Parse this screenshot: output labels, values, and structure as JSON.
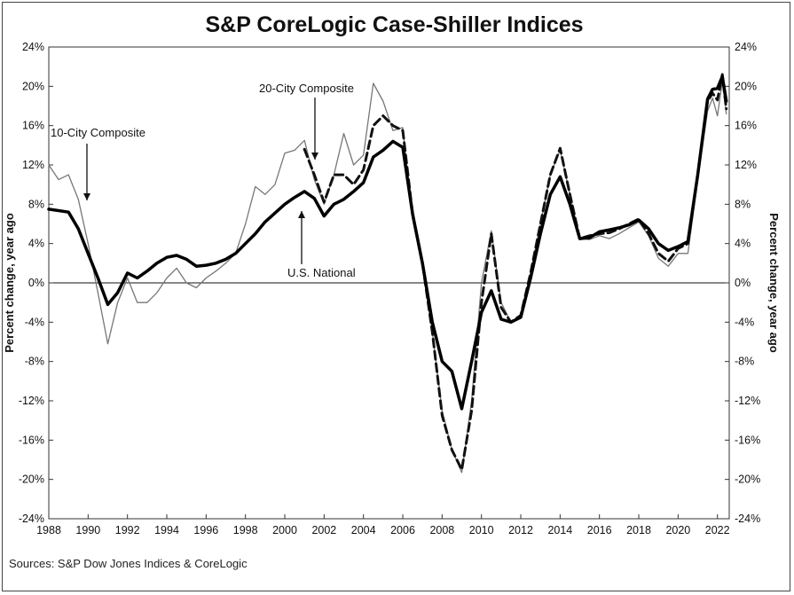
{
  "title": "S&P CoreLogic Case-Shiller Indices",
  "source": "Sources: S&P Dow Jones Indices & CoreLogic",
  "chart_data": {
    "type": "line",
    "ylabel_left": "Percent change, year ago",
    "ylabel_right": "Percent change, year ago",
    "xlim": [
      1988,
      2022.6
    ],
    "ylim": [
      -24,
      24
    ],
    "x_ticks": [
      "1988",
      "1990",
      "1992",
      "1994",
      "1996",
      "1998",
      "2000",
      "2002",
      "2004",
      "2006",
      "2008",
      "2010",
      "2012",
      "2014",
      "2016",
      "2018",
      "2020",
      "2022"
    ],
    "y_ticks": [
      "24%",
      "20%",
      "16%",
      "12%",
      "8%",
      "4%",
      "0%",
      "-4%",
      "-8%",
      "-12%",
      "-16%",
      "-20%",
      "-24%"
    ],
    "grid": false,
    "annotations": [
      {
        "text": "10-City Composite",
        "series": "10-City Composite"
      },
      {
        "text": "20-City Composite",
        "series": "20-City Composite"
      },
      {
        "text": "U.S. National",
        "series": "U.S. National"
      }
    ],
    "series": [
      {
        "name": "U.S. National",
        "style": "solid-thick",
        "points": [
          [
            1988,
            7.5
          ],
          [
            1989,
            7.2
          ],
          [
            1989.5,
            5.5
          ],
          [
            1990,
            3
          ],
          [
            1990.5,
            0.5
          ],
          [
            1991,
            -2.2
          ],
          [
            1991.5,
            -1
          ],
          [
            1992,
            1
          ],
          [
            1992.5,
            0.5
          ],
          [
            1993,
            1.2
          ],
          [
            1993.5,
            2
          ],
          [
            1994,
            2.6
          ],
          [
            1994.5,
            2.8
          ],
          [
            1995,
            2.4
          ],
          [
            1995.5,
            1.7
          ],
          [
            1996,
            1.8
          ],
          [
            1996.5,
            2
          ],
          [
            1997,
            2.4
          ],
          [
            1997.5,
            3
          ],
          [
            1998,
            4
          ],
          [
            1998.5,
            5
          ],
          [
            1999,
            6.2
          ],
          [
            1999.5,
            7.1
          ],
          [
            2000,
            8
          ],
          [
            2000.5,
            8.7
          ],
          [
            2001,
            9.3
          ],
          [
            2001.5,
            8.6
          ],
          [
            2002,
            6.8
          ],
          [
            2002.5,
            8
          ],
          [
            2003,
            8.5
          ],
          [
            2003.5,
            9.3
          ],
          [
            2004,
            10.2
          ],
          [
            2004.5,
            12.8
          ],
          [
            2005,
            13.5
          ],
          [
            2005.5,
            14.4
          ],
          [
            2006,
            13.8
          ],
          [
            2006.5,
            7
          ],
          [
            2007,
            2
          ],
          [
            2007.5,
            -4
          ],
          [
            2008,
            -8
          ],
          [
            2008.5,
            -9
          ],
          [
            2009,
            -12.8
          ],
          [
            2009.5,
            -8
          ],
          [
            2010,
            -3
          ],
          [
            2010.5,
            -0.8
          ],
          [
            2011,
            -3.7
          ],
          [
            2011.5,
            -4
          ],
          [
            2012,
            -3.5
          ],
          [
            2012.5,
            0.5
          ],
          [
            2013,
            5
          ],
          [
            2013.5,
            9
          ],
          [
            2014,
            10.8
          ],
          [
            2014.5,
            8
          ],
          [
            2015,
            4.5
          ],
          [
            2015.5,
            4.6
          ],
          [
            2016,
            5.2
          ],
          [
            2016.5,
            5.4
          ],
          [
            2017,
            5.6
          ],
          [
            2017.5,
            5.9
          ],
          [
            2018,
            6.4
          ],
          [
            2018.5,
            5.5
          ],
          [
            2019,
            4
          ],
          [
            2019.5,
            3.3
          ],
          [
            2020,
            3.7
          ],
          [
            2020.5,
            4.2
          ],
          [
            2021,
            11
          ],
          [
            2021.5,
            18.7
          ],
          [
            2021.75,
            19.7
          ],
          [
            2022,
            19.8
          ],
          [
            2022.25,
            21
          ],
          [
            2022.45,
            18.5
          ]
        ]
      },
      {
        "name": "20-City Composite",
        "style": "dashed-thick",
        "points": [
          [
            2001,
            13.6
          ],
          [
            2001.5,
            11
          ],
          [
            2002,
            8.2
          ],
          [
            2002.5,
            11
          ],
          [
            2003,
            11
          ],
          [
            2003.5,
            10
          ],
          [
            2004,
            11.5
          ],
          [
            2004.5,
            16
          ],
          [
            2005,
            17
          ],
          [
            2005.5,
            16
          ],
          [
            2006,
            15.5
          ],
          [
            2006.5,
            7
          ],
          [
            2007,
            2
          ],
          [
            2007.5,
            -5
          ],
          [
            2008,
            -13.5
          ],
          [
            2008.5,
            -17
          ],
          [
            2009,
            -19
          ],
          [
            2009.5,
            -13
          ],
          [
            2010,
            -2
          ],
          [
            2010.5,
            5
          ],
          [
            2011,
            -2.5
          ],
          [
            2011.5,
            -4
          ],
          [
            2012,
            -3.3
          ],
          [
            2012.5,
            1
          ],
          [
            2013,
            6
          ],
          [
            2013.5,
            11
          ],
          [
            2014,
            13.7
          ],
          [
            2014.5,
            9
          ],
          [
            2015,
            4.5
          ],
          [
            2015.5,
            4.8
          ],
          [
            2016,
            5
          ],
          [
            2016.5,
            5.1
          ],
          [
            2017,
            5.5
          ],
          [
            2017.5,
            6
          ],
          [
            2018,
            6.5
          ],
          [
            2018.5,
            5
          ],
          [
            2019,
            3
          ],
          [
            2019.5,
            2.2
          ],
          [
            2020,
            3.5
          ],
          [
            2020.5,
            4
          ],
          [
            2021,
            11
          ],
          [
            2021.5,
            18.5
          ],
          [
            2021.75,
            19.3
          ],
          [
            2022,
            18.6
          ],
          [
            2022.25,
            21.2
          ],
          [
            2022.45,
            17.7
          ]
        ]
      },
      {
        "name": "10-City Composite",
        "style": "solid-thin",
        "points": [
          [
            1988,
            12
          ],
          [
            1988.5,
            10.5
          ],
          [
            1989,
            11
          ],
          [
            1989.5,
            8.5
          ],
          [
            1990,
            4
          ],
          [
            1990.5,
            -1
          ],
          [
            1991,
            -6.2
          ],
          [
            1991.5,
            -2
          ],
          [
            1992,
            0.5
          ],
          [
            1992.5,
            -2
          ],
          [
            1993,
            -2
          ],
          [
            1993.5,
            -1
          ],
          [
            1994,
            0.5
          ],
          [
            1994.5,
            1.5
          ],
          [
            1995,
            0
          ],
          [
            1995.5,
            -0.5
          ],
          [
            1996,
            0.5
          ],
          [
            1996.5,
            1.2
          ],
          [
            1997,
            2
          ],
          [
            1997.5,
            3
          ],
          [
            1998,
            6
          ],
          [
            1998.5,
            9.8
          ],
          [
            1999,
            9
          ],
          [
            1999.5,
            10
          ],
          [
            2000,
            13.2
          ],
          [
            2000.5,
            13.5
          ],
          [
            2001,
            14.5
          ],
          [
            2001.5,
            10.5
          ],
          [
            2002,
            8
          ],
          [
            2002.5,
            11
          ],
          [
            2003,
            15.2
          ],
          [
            2003.5,
            12
          ],
          [
            2004,
            13
          ],
          [
            2004.5,
            20.3
          ],
          [
            2005,
            18.5
          ],
          [
            2005.5,
            15.5
          ],
          [
            2006,
            15.8
          ],
          [
            2006.5,
            6.5
          ],
          [
            2007,
            1.5
          ],
          [
            2007.5,
            -5
          ],
          [
            2008,
            -13
          ],
          [
            2008.5,
            -17
          ],
          [
            2009,
            -19.3
          ],
          [
            2009.5,
            -12
          ],
          [
            2010,
            0
          ],
          [
            2010.5,
            5.3
          ],
          [
            2011,
            -2
          ],
          [
            2011.5,
            -4
          ],
          [
            2012,
            -3.6
          ],
          [
            2012.5,
            1
          ],
          [
            2013,
            6
          ],
          [
            2013.5,
            11
          ],
          [
            2014,
            13.5
          ],
          [
            2014.5,
            9
          ],
          [
            2015,
            4.5
          ],
          [
            2015.5,
            4.4
          ],
          [
            2016,
            4.8
          ],
          [
            2016.5,
            4.5
          ],
          [
            2017,
            5
          ],
          [
            2017.5,
            5.6
          ],
          [
            2018,
            6.2
          ],
          [
            2018.5,
            4.8
          ],
          [
            2019,
            2.5
          ],
          [
            2019.5,
            1.7
          ],
          [
            2020,
            3
          ],
          [
            2020.5,
            3
          ],
          [
            2021,
            10.5
          ],
          [
            2021.5,
            17.5
          ],
          [
            2021.75,
            18.8
          ],
          [
            2022,
            17
          ],
          [
            2022.25,
            20.5
          ],
          [
            2022.45,
            17.2
          ]
        ]
      }
    ]
  }
}
